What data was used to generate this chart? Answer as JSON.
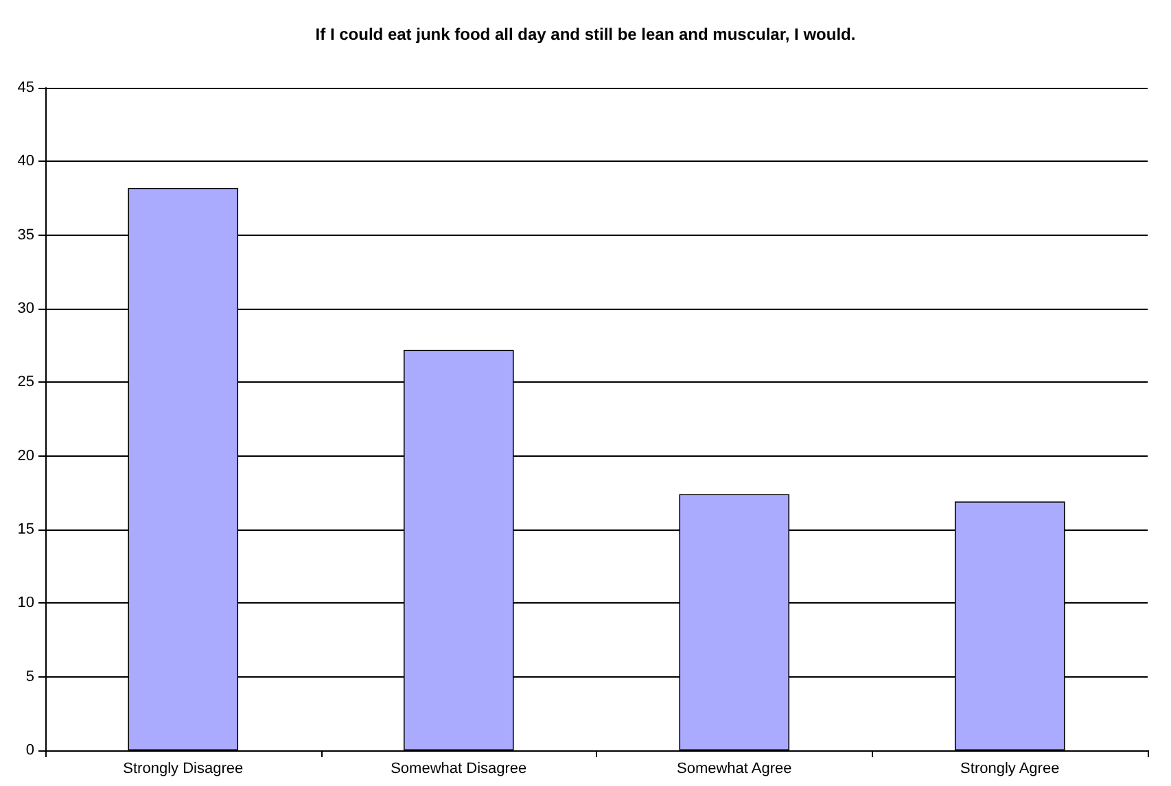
{
  "chart_data": {
    "type": "bar",
    "title": "If I could eat junk food all day and still be lean and muscular, I would.",
    "categories": [
      "Strongly Disagree",
      "Somewhat Disagree",
      "Somewhat Agree",
      "Strongly Agree"
    ],
    "values": [
      38.2,
      27.2,
      17.4,
      16.9
    ],
    "color": "#aaaaff",
    "ylim": [
      0,
      45
    ],
    "yticks": [
      0,
      5,
      10,
      15,
      20,
      25,
      30,
      35,
      40,
      45
    ],
    "grid": "y"
  }
}
